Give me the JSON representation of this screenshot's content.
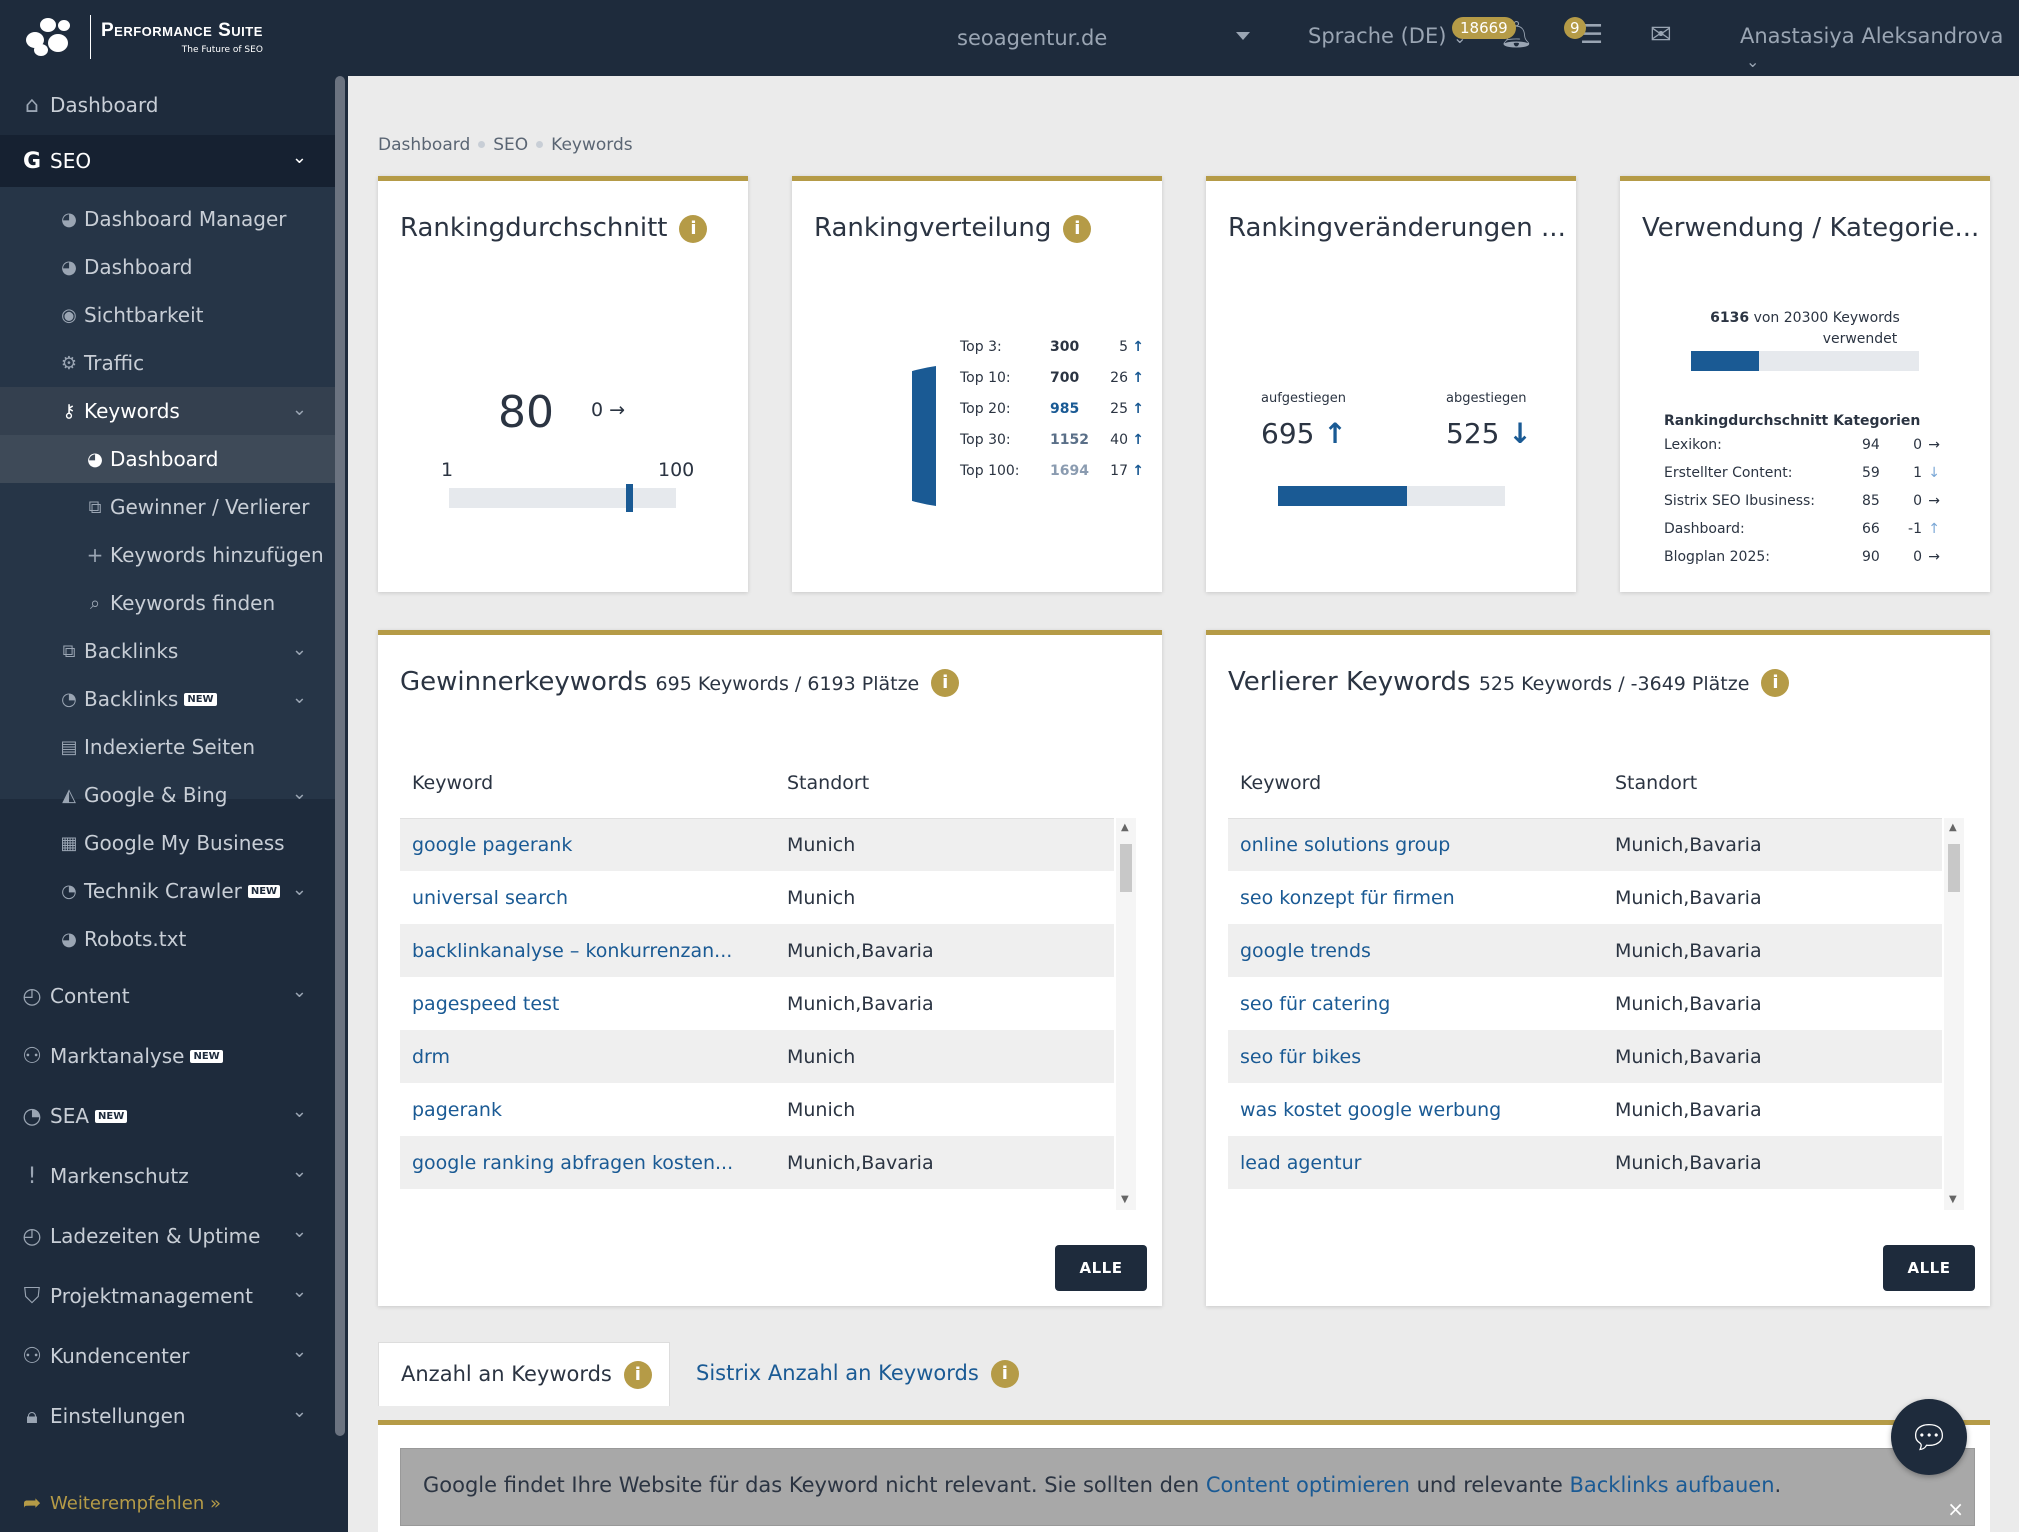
{
  "header": {
    "brand_title": "Performance Suite",
    "brand_tagline": "The Future of SEO",
    "domain": "seoagentur.de",
    "language": "Sprache (DE)",
    "notifications_count": "18669",
    "tasks_count": "9",
    "user_name": "Anastasiya Aleksandrova"
  },
  "sidebar": {
    "dashboard": "Dashboard",
    "seo": "SEO",
    "seo_items": [
      "Dashboard Manager",
      "Dashboard",
      "Sichtbarkeit",
      "Traffic",
      "Keywords"
    ],
    "keywords_items": [
      "Dashboard",
      "Gewinner / Verlierer",
      "Keywords hinzufügen",
      "Keywords finden"
    ],
    "seo_items2": [
      "Backlinks",
      "Backlinks",
      "Indexierte Seiten",
      "Google & Bing",
      "Google My Business",
      "Technik Crawler",
      "Robots.txt"
    ],
    "new_badge": "NEW",
    "main_items": [
      "Content",
      "Marktanalyse",
      "SEA",
      "Markenschutz",
      "Ladezeiten & Uptime",
      "Projektmanagement",
      "Kundencenter",
      "Einstellungen"
    ],
    "recommend": "Weiterempfehlen »"
  },
  "breadcrumb": [
    "Dashboard",
    "SEO",
    "Keywords"
  ],
  "cards": {
    "ranking_avg": {
      "title": "Rankingdurchschnitt",
      "value": "80",
      "change": "0",
      "min": "1",
      "max": "100",
      "level": 80
    },
    "ranking_dist": {
      "title": "Rankingverteilung",
      "rows": [
        {
          "label": "Top 3:",
          "value": "300",
          "change": "5"
        },
        {
          "label": "Top 10:",
          "value": "700",
          "change": "26"
        },
        {
          "label": "Top 20:",
          "value": "985",
          "change": "25"
        },
        {
          "label": "Top 30:",
          "value": "1152",
          "change": "40"
        },
        {
          "label": "Top 100:",
          "value": "1694",
          "change": "17"
        }
      ]
    },
    "ranking_changes": {
      "title": "Rankingveränderungen ...",
      "up_label": "aufgestiegen",
      "up_value": "695",
      "down_label": "abgestiegen",
      "down_value": "525",
      "up_share": 0.57
    },
    "usage": {
      "title": "Verwendung / Kategorie...",
      "used": "6136",
      "of_text": "von 20300 Keywords",
      "used_text": "verwendet",
      "used_share": 0.3,
      "cat_title": "Rankingdurchschnitt Kategorien",
      "categories": [
        {
          "name": "Lexikon:",
          "value": "94",
          "change": "0"
        },
        {
          "name": "Erstellter Content:",
          "value": "59",
          "change": "1"
        },
        {
          "name": "Sistrix SEO Ibusiness:",
          "value": "85",
          "change": "0"
        },
        {
          "name": "Dashboard:",
          "value": "66",
          "change": "-1"
        },
        {
          "name": "Blogplan 2025:",
          "value": "90",
          "change": "0"
        }
      ]
    }
  },
  "winners": {
    "title": "Gewinnerkeywords",
    "count": "695 Keywords",
    "places": "6193 Plätze",
    "col_keyword": "Keyword",
    "col_location": "Standort",
    "rows": [
      {
        "k": "google pagerank",
        "l": "Munich"
      },
      {
        "k": "universal search",
        "l": "Munich"
      },
      {
        "k": "backlinkanalyse – konkurrenzan...",
        "l": "Munich,Bavaria"
      },
      {
        "k": "pagespeed test",
        "l": "Munich,Bavaria"
      },
      {
        "k": "drm",
        "l": "Munich"
      },
      {
        "k": "pagerank",
        "l": "Munich"
      },
      {
        "k": "google ranking abfragen kosten...",
        "l": "Munich,Bavaria"
      }
    ],
    "button": "ALLE"
  },
  "losers": {
    "title": "Verlierer Keywords",
    "count": "525 Keywords",
    "places": "-3649 Plätze",
    "col_keyword": "Keyword",
    "col_location": "Standort",
    "rows": [
      {
        "k": "online solutions group",
        "l": "Munich,Bavaria"
      },
      {
        "k": "seo konzept für firmen",
        "l": "Munich,Bavaria"
      },
      {
        "k": "google trends",
        "l": "Munich,Bavaria"
      },
      {
        "k": "seo für catering",
        "l": "Munich,Bavaria"
      },
      {
        "k": "seo für bikes",
        "l": "Munich,Bavaria"
      },
      {
        "k": "was kostet google werbung",
        "l": "Munich,Bavaria"
      },
      {
        "k": "lead agentur",
        "l": "Munich,Bavaria"
      }
    ],
    "button": "ALLE"
  },
  "tabs": [
    "Anzahl an Keywords",
    "Sistrix Anzahl an Keywords"
  ],
  "alert": {
    "text1": "Google findet Ihre Website für das Keyword nicht relevant. Sie sollten den ",
    "link1": "Content optimieren",
    "text2": " und relevante ",
    "link2": "Backlinks aufbauen",
    "text3": "."
  }
}
